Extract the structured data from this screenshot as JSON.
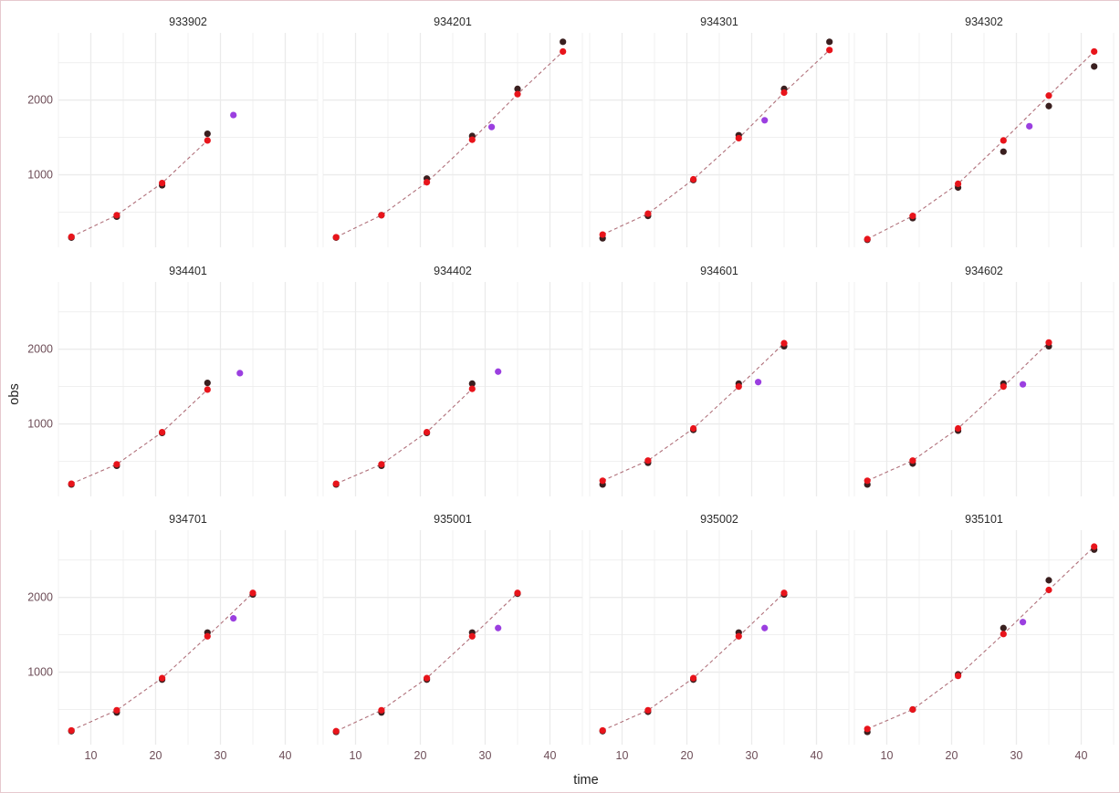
{
  "chart_data": {
    "type": "scatter",
    "layout": "facet-grid 3x4",
    "xlabel": "time",
    "ylabel": "obs",
    "xlim": [
      5,
      45
    ],
    "ylim": [
      30,
      2900
    ],
    "x_ticks": [
      10,
      20,
      30,
      40
    ],
    "y_ticks": [
      1000,
      2000
    ],
    "grid": true,
    "legend": "none",
    "colors": {
      "observed": "#3a1f1f",
      "fitted": "#e8141b",
      "new": "#9b3fe0",
      "fit_line": "#b0707a",
      "grid": "#ebebeb"
    },
    "panels": [
      {
        "title": "933902",
        "observed": [
          [
            7,
            160
          ],
          [
            14,
            440
          ],
          [
            21,
            860
          ],
          [
            28,
            1550
          ]
        ],
        "fitted": [
          [
            7,
            170
          ],
          [
            14,
            460
          ],
          [
            21,
            890
          ],
          [
            28,
            1460
          ]
        ],
        "new": [
          [
            32,
            1800
          ]
        ]
      },
      {
        "title": "934201",
        "observed": [
          [
            7,
            160
          ],
          [
            14,
            460
          ],
          [
            21,
            950
          ],
          [
            28,
            1520
          ],
          [
            35,
            2150
          ],
          [
            42,
            2780
          ]
        ],
        "fitted": [
          [
            7,
            165
          ],
          [
            14,
            460
          ],
          [
            21,
            900
          ],
          [
            28,
            1470
          ],
          [
            35,
            2080
          ],
          [
            42,
            2650
          ]
        ],
        "new": [
          [
            31,
            1640
          ]
        ]
      },
      {
        "title": "934301",
        "observed": [
          [
            7,
            150
          ],
          [
            14,
            450
          ],
          [
            21,
            930
          ],
          [
            28,
            1530
          ],
          [
            35,
            2150
          ],
          [
            42,
            2780
          ]
        ],
        "fitted": [
          [
            7,
            200
          ],
          [
            14,
            480
          ],
          [
            21,
            940
          ],
          [
            28,
            1490
          ],
          [
            35,
            2100
          ],
          [
            42,
            2670
          ]
        ],
        "new": [
          [
            32,
            1730
          ]
        ]
      },
      {
        "title": "934302",
        "observed": [
          [
            7,
            130
          ],
          [
            14,
            420
          ],
          [
            21,
            830
          ],
          [
            28,
            1310
          ],
          [
            35,
            1920
          ],
          [
            42,
            2450
          ]
        ],
        "fitted": [
          [
            7,
            140
          ],
          [
            14,
            450
          ],
          [
            21,
            880
          ],
          [
            28,
            1460
          ],
          [
            35,
            2060
          ],
          [
            42,
            2650
          ]
        ],
        "new": [
          [
            32,
            1650
          ]
        ]
      },
      {
        "title": "934401",
        "observed": [
          [
            7,
            190
          ],
          [
            14,
            440
          ],
          [
            21,
            880
          ],
          [
            28,
            1550
          ]
        ],
        "fitted": [
          [
            7,
            200
          ],
          [
            14,
            460
          ],
          [
            21,
            890
          ],
          [
            28,
            1460
          ]
        ],
        "new": [
          [
            33,
            1680
          ]
        ]
      },
      {
        "title": "934402",
        "observed": [
          [
            7,
            190
          ],
          [
            14,
            440
          ],
          [
            21,
            880
          ],
          [
            28,
            1540
          ]
        ],
        "fitted": [
          [
            7,
            200
          ],
          [
            14,
            460
          ],
          [
            21,
            890
          ],
          [
            28,
            1470
          ]
        ],
        "new": [
          [
            32,
            1700
          ]
        ]
      },
      {
        "title": "934601",
        "observed": [
          [
            7,
            190
          ],
          [
            14,
            480
          ],
          [
            21,
            920
          ],
          [
            28,
            1540
          ],
          [
            35,
            2040
          ]
        ],
        "fitted": [
          [
            7,
            240
          ],
          [
            14,
            510
          ],
          [
            21,
            940
          ],
          [
            28,
            1500
          ],
          [
            35,
            2080
          ]
        ],
        "new": [
          [
            31,
            1560
          ]
        ]
      },
      {
        "title": "934602",
        "observed": [
          [
            7,
            190
          ],
          [
            14,
            470
          ],
          [
            21,
            910
          ],
          [
            28,
            1540
          ],
          [
            35,
            2040
          ]
        ],
        "fitted": [
          [
            7,
            240
          ],
          [
            14,
            510
          ],
          [
            21,
            940
          ],
          [
            28,
            1500
          ],
          [
            35,
            2090
          ]
        ],
        "new": [
          [
            31,
            1530
          ]
        ]
      },
      {
        "title": "934701",
        "observed": [
          [
            7,
            210
          ],
          [
            14,
            460
          ],
          [
            21,
            900
          ],
          [
            28,
            1530
          ],
          [
            35,
            2040
          ]
        ],
        "fitted": [
          [
            7,
            220
          ],
          [
            14,
            490
          ],
          [
            21,
            920
          ],
          [
            28,
            1480
          ],
          [
            35,
            2060
          ]
        ],
        "new": [
          [
            32,
            1720
          ]
        ]
      },
      {
        "title": "935001",
        "observed": [
          [
            7,
            200
          ],
          [
            14,
            460
          ],
          [
            21,
            900
          ],
          [
            28,
            1530
          ],
          [
            35,
            2050
          ]
        ],
        "fitted": [
          [
            7,
            210
          ],
          [
            14,
            490
          ],
          [
            21,
            920
          ],
          [
            28,
            1480
          ],
          [
            35,
            2060
          ]
        ],
        "new": [
          [
            32,
            1590
          ]
        ]
      },
      {
        "title": "935002",
        "observed": [
          [
            7,
            210
          ],
          [
            14,
            470
          ],
          [
            21,
            900
          ],
          [
            28,
            1530
          ],
          [
            35,
            2040
          ]
        ],
        "fitted": [
          [
            7,
            220
          ],
          [
            14,
            490
          ],
          [
            21,
            920
          ],
          [
            28,
            1480
          ],
          [
            35,
            2060
          ]
        ],
        "new": [
          [
            32,
            1590
          ]
        ]
      },
      {
        "title": "935101",
        "observed": [
          [
            7,
            200
          ],
          [
            14,
            500
          ],
          [
            21,
            970
          ],
          [
            28,
            1590
          ],
          [
            35,
            2230
          ],
          [
            42,
            2640
          ]
        ],
        "fitted": [
          [
            7,
            240
          ],
          [
            14,
            500
          ],
          [
            21,
            950
          ],
          [
            28,
            1510
          ],
          [
            35,
            2100
          ],
          [
            42,
            2680
          ]
        ],
        "new": [
          [
            31,
            1670
          ]
        ]
      }
    ]
  }
}
